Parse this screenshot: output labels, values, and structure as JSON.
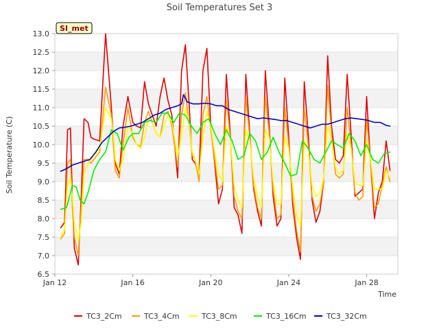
{
  "chart_data": {
    "type": "line",
    "title": "Soil Temperatures Set 3",
    "xlabel": "Time",
    "ylabel": "Soil Temperature (C)",
    "badge": "SI_met",
    "xlim": [
      12,
      29.6
    ],
    "ylim": [
      6.5,
      13.0
    ],
    "yticks": [
      6.5,
      7.0,
      7.5,
      8.0,
      8.5,
      9.0,
      9.5,
      10.0,
      10.5,
      11.0,
      11.5,
      12.0,
      12.5,
      13.0
    ],
    "xticks": [
      {
        "value": 12,
        "label": "Jan 12"
      },
      {
        "value": 16,
        "label": "Jan 16"
      },
      {
        "value": 20,
        "label": "Jan 20"
      },
      {
        "value": 24,
        "label": "Jan 24"
      },
      {
        "value": 28,
        "label": "Jan 28"
      }
    ],
    "grid": true,
    "legend_position": "bottom",
    "series": [
      {
        "name": "TC3_2Cm",
        "color": "#dd0000",
        "x": [
          12.3,
          12.5,
          12.65,
          12.8,
          12.9,
          13.0,
          13.2,
          13.35,
          13.5,
          13.7,
          13.85,
          14.0,
          14.3,
          14.6,
          14.9,
          15.0,
          15.1,
          15.3,
          15.5,
          15.75,
          16.0,
          16.2,
          16.4,
          16.6,
          16.8,
          17.0,
          17.2,
          17.4,
          17.6,
          17.8,
          18.0,
          18.3,
          18.5,
          18.7,
          18.9,
          19.05,
          19.2,
          19.4,
          19.6,
          19.8,
          20.0,
          20.2,
          20.4,
          20.6,
          20.8,
          21.0,
          21.2,
          21.4,
          21.6,
          21.8,
          22.0,
          22.2,
          22.4,
          22.6,
          22.8,
          23.0,
          23.2,
          23.4,
          23.6,
          23.8,
          24.0,
          24.2,
          24.4,
          24.6,
          24.8,
          25.0,
          25.2,
          25.4,
          25.6,
          25.8,
          26.0,
          26.2,
          26.4,
          26.6,
          26.8,
          27.0,
          27.2,
          27.4,
          27.6,
          27.8,
          28.0,
          28.2,
          28.4,
          28.6,
          28.8,
          29.0,
          29.2
        ],
        "y": [
          7.75,
          7.9,
          10.4,
          10.45,
          8.5,
          7.2,
          6.75,
          8.6,
          10.7,
          10.6,
          10.2,
          10.15,
          10.1,
          13.0,
          11.0,
          10.2,
          9.5,
          9.2,
          10.5,
          11.3,
          10.6,
          10.5,
          10.45,
          11.7,
          11.1,
          10.8,
          10.5,
          11.3,
          11.8,
          11.2,
          10.8,
          9.1,
          12.0,
          12.7,
          11.0,
          9.6,
          9.5,
          9.2,
          12.0,
          12.6,
          10.5,
          9.5,
          8.4,
          8.8,
          11.9,
          10.3,
          8.3,
          8.1,
          7.6,
          11.9,
          10.3,
          8.8,
          8.2,
          7.8,
          12.0,
          10.5,
          8.6,
          7.8,
          8.0,
          11.8,
          10.2,
          8.4,
          7.5,
          6.9,
          11.7,
          10.3,
          8.5,
          7.9,
          8.2,
          9.0,
          12.4,
          10.5,
          9.6,
          9.5,
          9.7,
          11.9,
          10.3,
          8.6,
          8.7,
          8.8,
          11.3,
          9.5,
          8.0,
          8.7,
          9.0,
          10.1,
          9.3
        ]
      },
      {
        "name": "TC3_4Cm",
        "color": "#ff9900",
        "x": [
          12.3,
          12.5,
          12.65,
          12.8,
          12.9,
          13.0,
          13.2,
          13.35,
          13.5,
          13.7,
          13.85,
          14.0,
          14.3,
          14.6,
          14.9,
          15.0,
          15.1,
          15.3,
          15.5,
          15.75,
          16.0,
          16.2,
          16.4,
          16.6,
          16.8,
          17.0,
          17.2,
          17.4,
          17.6,
          17.8,
          18.0,
          18.3,
          18.5,
          18.7,
          18.9,
          19.05,
          19.2,
          19.4,
          19.6,
          19.8,
          20.0,
          20.2,
          20.4,
          20.6,
          20.8,
          21.0,
          21.2,
          21.4,
          21.6,
          21.8,
          22.0,
          22.2,
          22.4,
          22.6,
          22.8,
          23.0,
          23.2,
          23.4,
          23.6,
          23.8,
          24.0,
          24.2,
          24.4,
          24.6,
          24.8,
          25.0,
          25.2,
          25.4,
          25.6,
          25.8,
          26.0,
          26.2,
          26.4,
          26.6,
          26.8,
          27.0,
          27.2,
          27.4,
          27.6,
          27.8,
          28.0,
          28.2,
          28.4,
          28.6,
          28.8,
          29.0,
          29.2
        ],
        "y": [
          7.45,
          7.6,
          9.5,
          9.6,
          8.3,
          7.5,
          7.0,
          8.3,
          9.6,
          9.6,
          9.5,
          9.6,
          9.8,
          11.55,
          10.8,
          10.0,
          9.3,
          9.1,
          10.0,
          11.0,
          10.2,
          10.0,
          9.95,
          10.6,
          10.9,
          10.6,
          10.3,
          10.2,
          10.8,
          10.9,
          10.5,
          9.4,
          10.8,
          11.4,
          10.5,
          9.7,
          9.6,
          9.0,
          10.8,
          11.3,
          10.4,
          9.6,
          8.8,
          8.9,
          11.2,
          10.2,
          8.6,
          8.2,
          8.0,
          11.3,
          10.2,
          8.9,
          8.3,
          8.0,
          11.3,
          10.3,
          8.8,
          8.0,
          8.1,
          11.0,
          10.0,
          8.6,
          7.7,
          7.1,
          11.0,
          10.0,
          8.6,
          8.2,
          8.4,
          9.0,
          11.6,
          10.3,
          9.2,
          9.1,
          9.2,
          11.0,
          10.0,
          8.7,
          8.5,
          8.6,
          10.7,
          9.5,
          8.3,
          8.4,
          8.9,
          9.4,
          9.0
        ]
      },
      {
        "name": "TC3_8Cm",
        "color": "#ffff00",
        "x": [
          12.3,
          12.5,
          12.65,
          12.8,
          12.9,
          13.0,
          13.2,
          13.35,
          13.5,
          13.7,
          13.85,
          14.0,
          14.3,
          14.6,
          14.9,
          15.0,
          15.1,
          15.3,
          15.5,
          15.75,
          16.0,
          16.2,
          16.4,
          16.6,
          16.8,
          17.0,
          17.2,
          17.4,
          17.6,
          17.8,
          18.0,
          18.3,
          18.5,
          18.7,
          18.9,
          19.05,
          19.2,
          19.4,
          19.6,
          19.8,
          20.0,
          20.2,
          20.4,
          20.6,
          20.8,
          21.0,
          21.2,
          21.4,
          21.6,
          21.8,
          22.0,
          22.2,
          22.4,
          22.6,
          22.8,
          23.0,
          23.2,
          23.4,
          23.6,
          23.8,
          24.0,
          24.2,
          24.4,
          24.6,
          24.8,
          25.0,
          25.2,
          25.4,
          25.6,
          25.8,
          26.0,
          26.2,
          26.4,
          26.6,
          26.8,
          27.0,
          27.2,
          27.4,
          27.6,
          27.8,
          28.0,
          28.2,
          28.4,
          28.6,
          28.8,
          29.0,
          29.2
        ],
        "y": [
          7.5,
          7.7,
          8.9,
          9.1,
          8.6,
          7.9,
          7.4,
          7.9,
          9.2,
          9.5,
          9.6,
          9.7,
          9.9,
          11.0,
          10.7,
          10.3,
          9.6,
          9.3,
          9.6,
          10.5,
          10.3,
          10.0,
          9.9,
          10.2,
          10.7,
          10.6,
          10.3,
          10.2,
          10.5,
          10.8,
          10.6,
          9.7,
          10.2,
          11.0,
          10.6,
          9.8,
          9.6,
          9.2,
          10.2,
          10.9,
          10.5,
          9.8,
          9.2,
          9.0,
          10.5,
          10.2,
          8.9,
          8.5,
          8.3,
          10.4,
          10.1,
          9.1,
          8.6,
          8.3,
          10.4,
          10.2,
          9.0,
          8.4,
          8.4,
          10.2,
          9.9,
          8.9,
          8.1,
          7.8,
          10.1,
          9.9,
          8.9,
          8.6,
          8.7,
          9.1,
          10.5,
          10.1,
          9.4,
          9.2,
          9.3,
          10.3,
          9.9,
          9.0,
          8.9,
          8.9,
          10.1,
          9.6,
          8.8,
          8.8,
          8.8,
          9.3,
          9.1
        ]
      },
      {
        "name": "TC3_16Cm",
        "color": "#00ee00",
        "x": [
          12.3,
          12.6,
          12.9,
          13.1,
          13.3,
          13.5,
          13.7,
          14.0,
          14.3,
          14.6,
          14.9,
          15.2,
          15.5,
          15.8,
          16.0,
          16.3,
          16.6,
          16.9,
          17.2,
          17.5,
          17.8,
          18.1,
          18.4,
          18.7,
          19.0,
          19.3,
          19.6,
          19.9,
          20.2,
          20.5,
          20.8,
          21.1,
          21.4,
          21.7,
          22.0,
          22.3,
          22.6,
          22.9,
          23.2,
          23.5,
          23.8,
          24.1,
          24.4,
          24.7,
          25.0,
          25.3,
          25.6,
          25.9,
          26.2,
          26.5,
          26.8,
          27.1,
          27.4,
          27.7,
          28.0,
          28.3,
          28.6,
          28.9,
          29.2
        ],
        "y": [
          8.25,
          8.3,
          8.9,
          8.85,
          8.5,
          8.4,
          8.7,
          9.3,
          9.6,
          9.8,
          10.4,
          10.3,
          9.85,
          10.2,
          10.3,
          10.3,
          10.6,
          10.65,
          10.6,
          10.85,
          10.85,
          10.6,
          10.85,
          10.8,
          10.5,
          10.3,
          10.6,
          10.7,
          10.3,
          10.0,
          10.4,
          10.1,
          9.6,
          9.7,
          10.3,
          10.1,
          9.6,
          9.8,
          10.2,
          9.8,
          9.5,
          9.15,
          9.2,
          10.1,
          9.9,
          9.6,
          9.5,
          9.8,
          10.1,
          10.0,
          9.9,
          10.3,
          10.1,
          9.7,
          10.0,
          9.6,
          9.5,
          9.75,
          9.8
        ]
      },
      {
        "name": "TC3_32Cm",
        "color": "#0000cc",
        "x": [
          12.3,
          12.6,
          12.9,
          13.2,
          13.5,
          13.8,
          14.1,
          14.4,
          14.7,
          15.0,
          15.3,
          15.6,
          15.9,
          16.2,
          16.5,
          16.8,
          17.1,
          17.4,
          17.7,
          18.0,
          18.3,
          18.5,
          18.6,
          18.8,
          19.1,
          19.4,
          19.7,
          20.0,
          20.3,
          20.6,
          20.9,
          21.2,
          21.5,
          21.8,
          22.1,
          22.4,
          22.7,
          23.0,
          23.3,
          23.6,
          23.9,
          24.2,
          24.5,
          24.8,
          25.1,
          25.4,
          25.7,
          26.0,
          26.3,
          26.6,
          26.9,
          27.2,
          27.5,
          27.8,
          28.1,
          28.4,
          28.7,
          29.0,
          29.2
        ],
        "y": [
          9.28,
          9.35,
          9.45,
          9.5,
          9.55,
          9.6,
          9.8,
          10.05,
          10.2,
          10.35,
          10.45,
          10.47,
          10.5,
          10.55,
          10.6,
          10.7,
          10.8,
          10.85,
          10.95,
          11.0,
          11.05,
          11.1,
          11.35,
          11.15,
          11.1,
          11.1,
          11.12,
          11.1,
          11.05,
          11.05,
          10.95,
          10.9,
          10.85,
          10.8,
          10.75,
          10.7,
          10.72,
          10.7,
          10.68,
          10.65,
          10.65,
          10.6,
          10.55,
          10.5,
          10.45,
          10.5,
          10.55,
          10.55,
          10.6,
          10.65,
          10.7,
          10.72,
          10.7,
          10.68,
          10.65,
          10.6,
          10.6,
          10.52,
          10.5
        ]
      }
    ]
  }
}
